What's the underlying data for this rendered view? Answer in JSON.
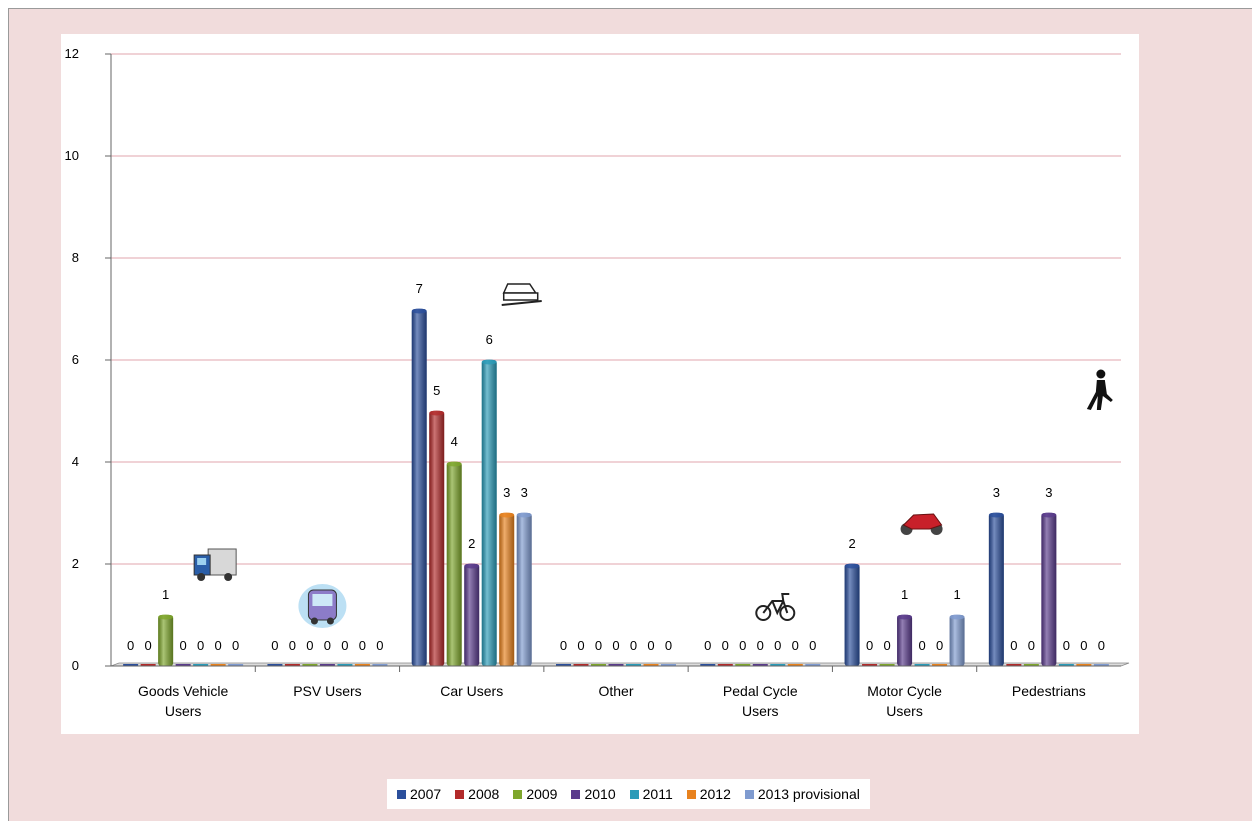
{
  "chart_data": {
    "type": "bar",
    "title": "",
    "xlabel": "",
    "ylabel": "",
    "ylim": [
      0,
      12
    ],
    "yticks": [
      0,
      2,
      4,
      6,
      8,
      10,
      12
    ],
    "grid": true,
    "legend_position": "bottom",
    "categories": [
      [
        "Goods Vehicle",
        "Users"
      ],
      [
        "PSV Users"
      ],
      [
        "Car Users"
      ],
      [
        "Other"
      ],
      [
        "Pedal Cycle",
        "Users"
      ],
      [
        "Motor Cycle",
        "Users"
      ],
      [
        "Pedestrians"
      ]
    ],
    "category_icons": [
      "truck-icon",
      "bus-icon",
      "car-icon",
      "",
      "bicycle-icon",
      "motorcycle-icon",
      "pedestrian-icon"
    ],
    "series": [
      {
        "name": "2007",
        "color": "#2b4f9c",
        "values": [
          0,
          0,
          7,
          0,
          0,
          2,
          3
        ]
      },
      {
        "name": "2008",
        "color": "#b22a2a",
        "values": [
          0,
          0,
          5,
          0,
          0,
          0,
          0
        ]
      },
      {
        "name": "2009",
        "color": "#7ea62c",
        "values": [
          1,
          0,
          4,
          0,
          0,
          0,
          0
        ]
      },
      {
        "name": "2010",
        "color": "#5a3b8c",
        "values": [
          0,
          0,
          2,
          0,
          0,
          1,
          3
        ]
      },
      {
        "name": "2011",
        "color": "#2a9bb8",
        "values": [
          0,
          0,
          6,
          0,
          0,
          0,
          0
        ]
      },
      {
        "name": "2012",
        "color": "#e8821e",
        "values": [
          0,
          0,
          3,
          0,
          0,
          0,
          0
        ]
      },
      {
        "name": "2013 provisional",
        "color": "#7f9bd0",
        "values": [
          0,
          0,
          3,
          0,
          0,
          1,
          0
        ]
      }
    ]
  }
}
